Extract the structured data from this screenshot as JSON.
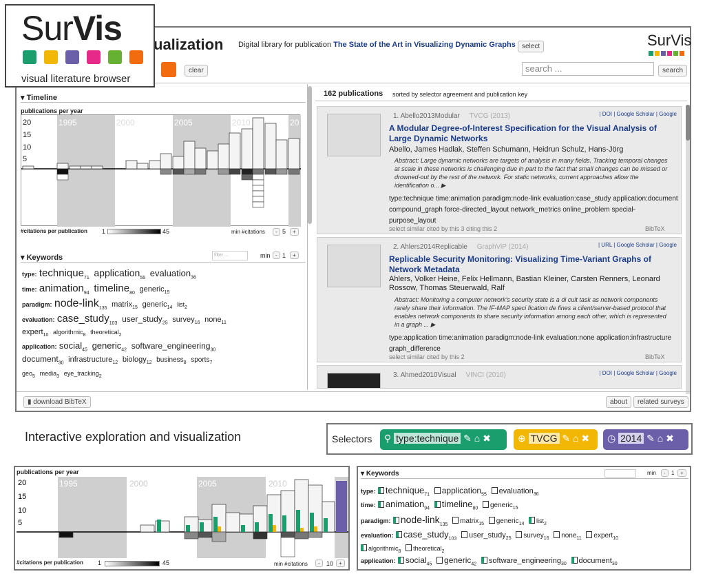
{
  "brand": {
    "name_part1": "Sur",
    "name_part2": "Vis",
    "subtitle": "visual literature browser"
  },
  "header": {
    "title": "ualization",
    "desc_prefix": "Digital library for publication ",
    "desc_title": "The State of the Art in Visualizing Dynamic Graphs",
    "select_label": "select",
    "logo": "SurVis",
    "clear_label": "clear",
    "search_placeholder": "search ...",
    "search_label": "search"
  },
  "timeline": {
    "section": "Timeline",
    "ylabel": "publications per year",
    "yticks": [
      "20",
      "15",
      "10",
      "5"
    ],
    "xticks": [
      "1995",
      "2000",
      "2005",
      "2010",
      "20"
    ],
    "citations_label": "#citations per publication",
    "range_min": "1",
    "range_max": "45",
    "min_citations_label": "min #citations",
    "min_citations": "5"
  },
  "keywords": {
    "section": "Keywords",
    "filter_placeholder": "filter ...",
    "min_label": "min",
    "min_value": "1"
  },
  "results": {
    "count": "162 publications",
    "sort": "sorted by selector agreement and publication key"
  },
  "pubs": [
    {
      "num": "1. Abello2013Modular",
      "venue": "TVCG (2013)",
      "links": "| DOI | Google Scholar | Google",
      "title": "A Modular Degree-of-Interest Specification for the Visual Analysis of Large Dynamic Networks",
      "authors": "Abello, James  Hadlak, Steffen  Schumann, Heidrun  Schulz, Hans-Jörg",
      "abstract": "Abstract: Large dynamic networks are targets of analysis in many fields. Tracking temporal changes at scale in these networks is challenging due in part to the fact that small changes can be missed or drowned-out by the rest of the network. For static networks, current approaches allow the identification o... ▶",
      "tags": "type:technique  time:animation  paradigm:node-link  evaluation:case_study  application:document  compound_graph  force-directed_layout  network_metrics  online_problem  special-purpose_layout",
      "foot": "select similar   cited by this 3   citing this 2",
      "bib": "BibTeX"
    },
    {
      "num": "2. Ahlers2014Replicable",
      "venue": "GraphViP (2014)",
      "links": "| URL | Google Scholar | Google",
      "title": "Replicable Security Monitoring: Visualizing Time-Variant Graphs of Network Metadata",
      "authors": "Ahlers, Volker  Heine, Felix  Hellmann, Bastian  Kleiner, Carsten  Renners, Leonard  Rossow, Thomas  Steuerwald, Ralf",
      "abstract": "Abstract: Monitoring a computer network's security state is a di cult task as network components rarely share their information. The IF-MAP speci fication de fines a client/server-based protocol that enables network components to share security information among each other, which is represented in a graph ... ▶",
      "tags": "type:application  time:animation  paradigm:node-link  evaluation:none  application:infrastructure  graph_difference",
      "foot": "select similar   cited by this 2",
      "bib": "BibTeX"
    },
    {
      "num": "3. Ahmed2010Visual",
      "venue": "VINCI (2010)",
      "links": "| DOI | Google Scholar | Google"
    }
  ],
  "footer": {
    "download": "download BibTeX",
    "about": "about",
    "related": "related surveys"
  },
  "caption": "Interactive exploration and visualization",
  "selectors": {
    "label": "Selectors",
    "items": [
      "type:technique",
      "TVCG",
      "2014"
    ],
    "colors": [
      "#1b9e6e",
      "#f2b705",
      "#6a5fa8"
    ]
  },
  "timeline2": {
    "ylabel": "publications per year",
    "min_citations": "10"
  },
  "keywords2": {
    "section": "Keywords",
    "min_label": "min",
    "min_value": "1"
  }
}
